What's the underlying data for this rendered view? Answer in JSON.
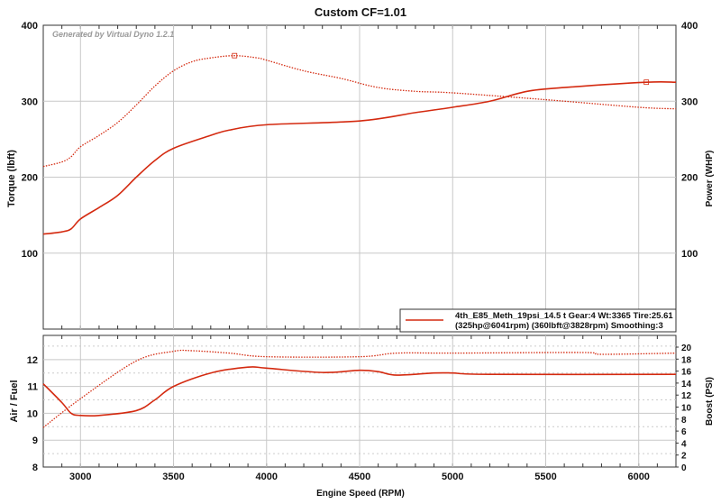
{
  "watermark": "Generated by Virtual Dyno 1.2.1",
  "colors": {
    "series": "#d42a10",
    "grid": "#c8c8c8",
    "axis": "#333333"
  },
  "chart_data": [
    {
      "type": "line",
      "title": "Custom CF=1.01",
      "xlabel": "Engine Speed (RPM)",
      "ylabel": "Torque (lbft)",
      "y2label": "Power (WHP)",
      "xlim": [
        2800,
        6200
      ],
      "ylim": [
        0,
        400
      ],
      "xticks": [
        3000,
        3500,
        4000,
        4500,
        5000,
        5500,
        6000
      ],
      "yticks": [
        100,
        200,
        300,
        400
      ],
      "legend": {
        "placement": "bottom-right",
        "line1": "4th_E85_Meth_19psi_14.5 t Gear:4 Wt:3365 Tire:25.61",
        "line2": "(325hp@6041rpm) (360lbft@3828rpm) Smoothing:3"
      },
      "series": [
        {
          "name": "Torque",
          "style": "dotted",
          "peak_x": 3828,
          "x": [
            2800,
            2900,
            2950,
            3000,
            3100,
            3200,
            3300,
            3400,
            3500,
            3600,
            3700,
            3828,
            3950,
            4000,
            4200,
            4400,
            4600,
            4800,
            5000,
            5500,
            6000,
            6200
          ],
          "y": [
            214,
            220,
            227,
            240,
            255,
            272,
            295,
            320,
            340,
            352,
            357,
            360,
            357,
            354,
            340,
            330,
            318,
            313,
            311,
            302,
            292,
            290
          ]
        },
        {
          "name": "Power",
          "style": "solid",
          "peak_x": 6041,
          "x": [
            2800,
            2900,
            2950,
            3000,
            3100,
            3200,
            3300,
            3400,
            3500,
            3700,
            3800,
            4000,
            4500,
            4800,
            5000,
            5200,
            5400,
            5600,
            6041,
            6200
          ],
          "y": [
            125,
            128,
            132,
            145,
            160,
            176,
            200,
            222,
            238,
            255,
            262,
            269,
            274,
            285,
            292,
            300,
            313,
            318,
            325,
            325
          ]
        }
      ]
    },
    {
      "type": "line",
      "xlabel": "Engine Speed (RPM)",
      "ylabel": "Air / Fuel",
      "y2label": "Boost (PSI)",
      "xlim": [
        2800,
        6200
      ],
      "ylim": [
        8,
        12.9
      ],
      "y2lim": [
        0,
        20
      ],
      "yticks": [
        8,
        9,
        10,
        11,
        12
      ],
      "y2ticks": [
        0,
        2,
        4,
        6,
        8,
        10,
        12,
        14,
        16,
        18,
        20
      ],
      "series": [
        {
          "name": "Air / Fuel",
          "style": "solid",
          "axis": "left",
          "x": [
            2800,
            2900,
            2950,
            3000,
            3100,
            3300,
            3400,
            3500,
            3700,
            3900,
            4000,
            4300,
            4500,
            4600,
            4700,
            4900,
            5000,
            5200,
            6200
          ],
          "y": [
            11.1,
            10.4,
            10.0,
            9.92,
            9.92,
            10.1,
            10.5,
            11.0,
            11.5,
            11.72,
            11.68,
            11.52,
            11.6,
            11.55,
            11.42,
            11.5,
            11.5,
            11.45,
            11.45
          ]
        },
        {
          "name": "Boost",
          "style": "dotted",
          "axis": "right",
          "x": [
            2800,
            3000,
            3300,
            3500,
            3600,
            3800,
            4000,
            4500,
            4700,
            5000,
            5700,
            5800,
            6200
          ],
          "y": [
            6.6,
            11.4,
            17.7,
            19.3,
            19.4,
            19.0,
            18.4,
            18.4,
            19.0,
            19.0,
            19.1,
            18.8,
            19.0
          ]
        }
      ]
    }
  ]
}
